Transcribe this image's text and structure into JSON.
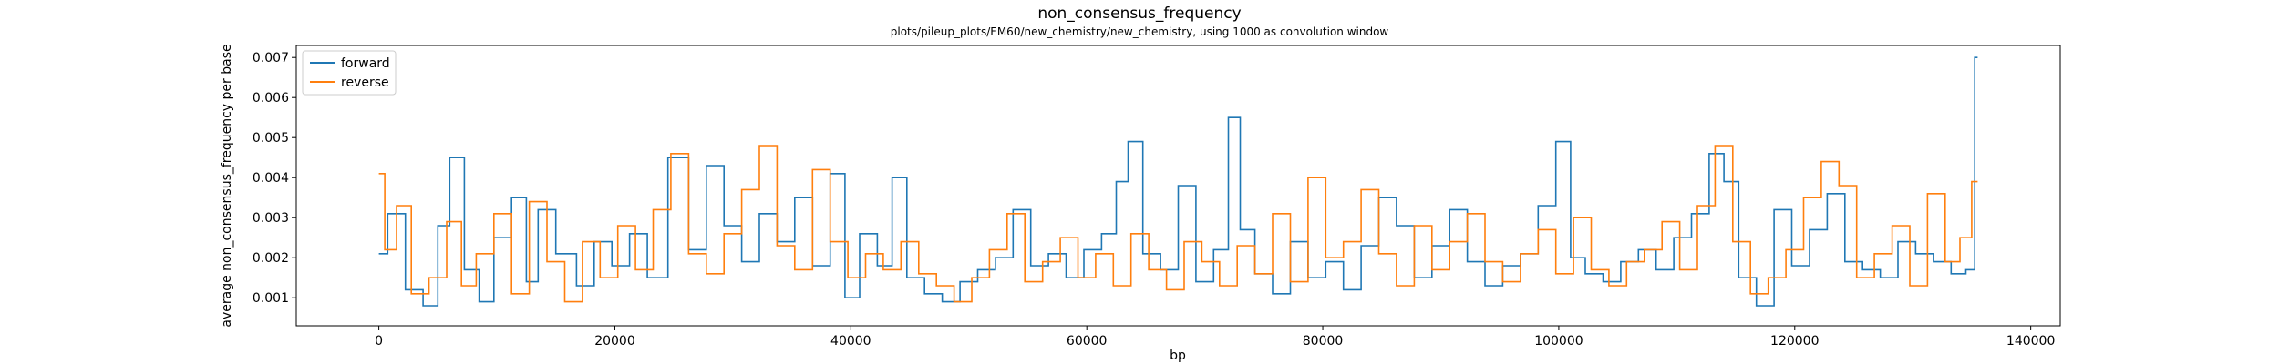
{
  "chart_data": {
    "type": "line",
    "title": "non_consensus_frequency",
    "subtitle": "plots/pileup_plots/EM60/new_chemistry/new_chemistry, using 1000 as convolution window",
    "xlabel": "bp",
    "ylabel": "average non_consensus_frequency per base",
    "xlim": [
      -7000,
      142500
    ],
    "ylim": [
      0.0003,
      0.0073
    ],
    "xticks": [
      0,
      20000,
      40000,
      60000,
      80000,
      100000,
      120000,
      140000
    ],
    "xtick_labels": [
      "0",
      "20000",
      "40000",
      "60000",
      "80000",
      "100000",
      "120000",
      "140000"
    ],
    "yticks": [
      0.001,
      0.002,
      0.003,
      0.004,
      0.005,
      0.006,
      0.007
    ],
    "ytick_labels": [
      "0.001",
      "0.002",
      "0.003",
      "0.004",
      "0.005",
      "0.006",
      "0.007"
    ],
    "grid": false,
    "legend_position": "top-left",
    "series": [
      {
        "name": "forward",
        "color": "#1f77b4",
        "x": [
          0,
          1500,
          3000,
          4500,
          5500,
          6500,
          8000,
          9000,
          10500,
          12000,
          13000,
          14000,
          16000,
          17500,
          19000,
          20500,
          22000,
          23500,
          25500,
          27000,
          28500,
          30000,
          31500,
          33000,
          34500,
          36000,
          37500,
          39000,
          40000,
          41500,
          43000,
          44000,
          45500,
          47000,
          48500,
          50000,
          51500,
          53000,
          54500,
          56000,
          57500,
          59000,
          60500,
          62000,
          63000,
          64000,
          65500,
          67000,
          68500,
          70000,
          71500,
          72500,
          73500,
          75000,
          76500,
          78000,
          79500,
          81000,
          82500,
          84000,
          85500,
          87000,
          88500,
          90000,
          91500,
          93000,
          94500,
          96000,
          97500,
          99000,
          100500,
          101500,
          103000,
          104500,
          106000,
          107500,
          109000,
          110500,
          112000,
          113500,
          114500,
          116000,
          117500,
          119000,
          120500,
          122000,
          123500,
          125000,
          126500,
          128000,
          129500,
          131000,
          132500,
          134000,
          135000,
          135500
        ],
        "y": [
          0.0021,
          0.0031,
          0.0012,
          0.0008,
          0.0028,
          0.0045,
          0.0017,
          0.0009,
          0.0025,
          0.0035,
          0.0014,
          0.0032,
          0.0021,
          0.0013,
          0.0024,
          0.0018,
          0.0026,
          0.0015,
          0.0045,
          0.0022,
          0.0043,
          0.0028,
          0.0019,
          0.0031,
          0.0024,
          0.0035,
          0.0018,
          0.0041,
          0.001,
          0.0026,
          0.0018,
          0.004,
          0.0015,
          0.0011,
          0.0009,
          0.0014,
          0.0017,
          0.002,
          0.0032,
          0.0018,
          0.0021,
          0.0015,
          0.0022,
          0.0026,
          0.0039,
          0.0049,
          0.0021,
          0.0017,
          0.0038,
          0.0014,
          0.0022,
          0.0055,
          0.0027,
          0.0016,
          0.0011,
          0.0024,
          0.0015,
          0.0019,
          0.0012,
          0.0023,
          0.0035,
          0.0028,
          0.0015,
          0.0023,
          0.0032,
          0.0019,
          0.0013,
          0.0018,
          0.0021,
          0.0033,
          0.0049,
          0.002,
          0.0016,
          0.0014,
          0.0019,
          0.0022,
          0.0017,
          0.0025,
          0.0031,
          0.0046,
          0.0039,
          0.0015,
          0.0008,
          0.0032,
          0.0018,
          0.0027,
          0.0036,
          0.0019,
          0.0017,
          0.0015,
          0.0024,
          0.0021,
          0.0019,
          0.0016,
          0.0017,
          0.007
        ]
      },
      {
        "name": "reverse",
        "color": "#ff7f0e",
        "x": [
          0,
          1000,
          2000,
          3500,
          5000,
          6500,
          7500,
          9000,
          10500,
          12000,
          13500,
          15000,
          16500,
          18000,
          19500,
          21000,
          22500,
          24000,
          25500,
          27000,
          28500,
          30000,
          31500,
          33000,
          34500,
          36000,
          37500,
          39000,
          40500,
          42000,
          43500,
          45000,
          46500,
          48000,
          49500,
          51000,
          52500,
          54000,
          55500,
          57000,
          58500,
          60000,
          61500,
          63000,
          64500,
          66000,
          67500,
          69000,
          70500,
          72000,
          73500,
          75000,
          76500,
          78000,
          79500,
          81000,
          82500,
          84000,
          85500,
          87000,
          88500,
          90000,
          91500,
          93000,
          94500,
          96000,
          97500,
          99000,
          100500,
          102000,
          103500,
          105000,
          106500,
          108000,
          109500,
          111000,
          112500,
          114000,
          115500,
          117000,
          118500,
          120000,
          121500,
          123000,
          124500,
          126000,
          127500,
          129000,
          130500,
          132000,
          133500,
          134500,
          135500
        ],
        "y": [
          0.0041,
          0.0022,
          0.0033,
          0.0011,
          0.0015,
          0.0029,
          0.0013,
          0.0021,
          0.0031,
          0.0011,
          0.0034,
          0.0019,
          0.0009,
          0.0024,
          0.0015,
          0.0028,
          0.0017,
          0.0032,
          0.0046,
          0.0021,
          0.0016,
          0.0026,
          0.0037,
          0.0048,
          0.0023,
          0.0017,
          0.0042,
          0.0024,
          0.0015,
          0.0021,
          0.0017,
          0.0024,
          0.0016,
          0.0013,
          0.0009,
          0.0015,
          0.0022,
          0.0031,
          0.0014,
          0.0019,
          0.0025,
          0.0015,
          0.0021,
          0.0013,
          0.0026,
          0.0017,
          0.0012,
          0.0024,
          0.0019,
          0.0013,
          0.0023,
          0.0016,
          0.0031,
          0.0014,
          0.004,
          0.002,
          0.0024,
          0.0037,
          0.0021,
          0.0013,
          0.0028,
          0.0017,
          0.0024,
          0.0031,
          0.0019,
          0.0014,
          0.0021,
          0.0027,
          0.0016,
          0.003,
          0.0017,
          0.0013,
          0.0019,
          0.0022,
          0.0029,
          0.0017,
          0.0033,
          0.0048,
          0.0024,
          0.0011,
          0.0015,
          0.0022,
          0.0035,
          0.0044,
          0.0038,
          0.0015,
          0.0021,
          0.0028,
          0.0013,
          0.0036,
          0.0019,
          0.0025,
          0.0039
        ]
      }
    ]
  }
}
